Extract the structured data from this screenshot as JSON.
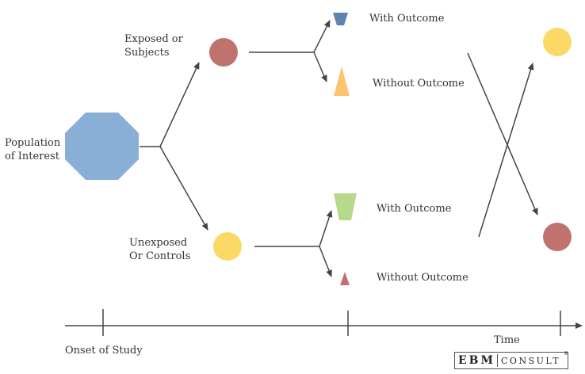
{
  "labels": {
    "population_line1": "Population",
    "population_line2": "of Interest",
    "exposed_line1": "Exposed or",
    "exposed_line2": "Subjects",
    "unexposed_line1": "Unexposed",
    "unexposed_line2": "Or Controls",
    "exposed_with_outcome": "With Outcome",
    "exposed_without_outcome": "Without Outcome",
    "unexposed_with_outcome": "With Outcome",
    "unexposed_without_outcome": "Without Outcome",
    "onset": "Onset of Study",
    "time": "Time"
  },
  "logo": {
    "main": "EBM",
    "sub": "CONSULT",
    "reg": "®"
  },
  "colors": {
    "population": "#8aafd6",
    "exposed": "#c0726f",
    "unexposed": "#fcd865",
    "with_outcome_exposed": "#5b85ae",
    "without_outcome_exposed": "#fbc46d",
    "with_outcome_unexposed": "#b6d98c",
    "without_outcome_unexposed": "#c0726f",
    "line": "#444444"
  }
}
